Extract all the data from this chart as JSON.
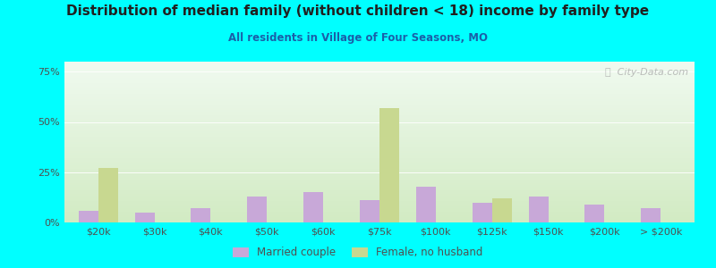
{
  "title": "Distribution of median family (without children < 18) income by family type",
  "subtitle": "All residents in Village of Four Seasons, MO",
  "categories": [
    "$20k",
    "$30k",
    "$40k",
    "$50k",
    "$60k",
    "$75k",
    "$100k",
    "$125k",
    "$150k",
    "$200k",
    "> $200k"
  ],
  "married_couple": [
    6,
    5,
    7,
    13,
    15,
    11,
    18,
    10,
    13,
    9,
    7
  ],
  "female_no_husband": [
    27,
    0,
    0,
    0,
    0,
    57,
    0,
    12,
    0,
    0,
    0
  ],
  "married_color": "#c8a8d8",
  "female_color": "#c8d890",
  "fig_bg_color": "#00ffff",
  "plot_bg_color_top": "#f0f8f0",
  "plot_bg_color_bottom": "#d8ecc8",
  "title_color": "#202020",
  "subtitle_color": "#1a5fa8",
  "tick_label_color": "#505050",
  "ytick_labels": [
    "0%",
    "25%",
    "50%",
    "75%"
  ],
  "ytick_values": [
    0,
    25,
    50,
    75
  ],
  "ylim": [
    0,
    80
  ],
  "bar_width": 0.35,
  "watermark": "ⓘ  City-Data.com",
  "legend_labels": [
    "Married couple",
    "Female, no husband"
  ]
}
